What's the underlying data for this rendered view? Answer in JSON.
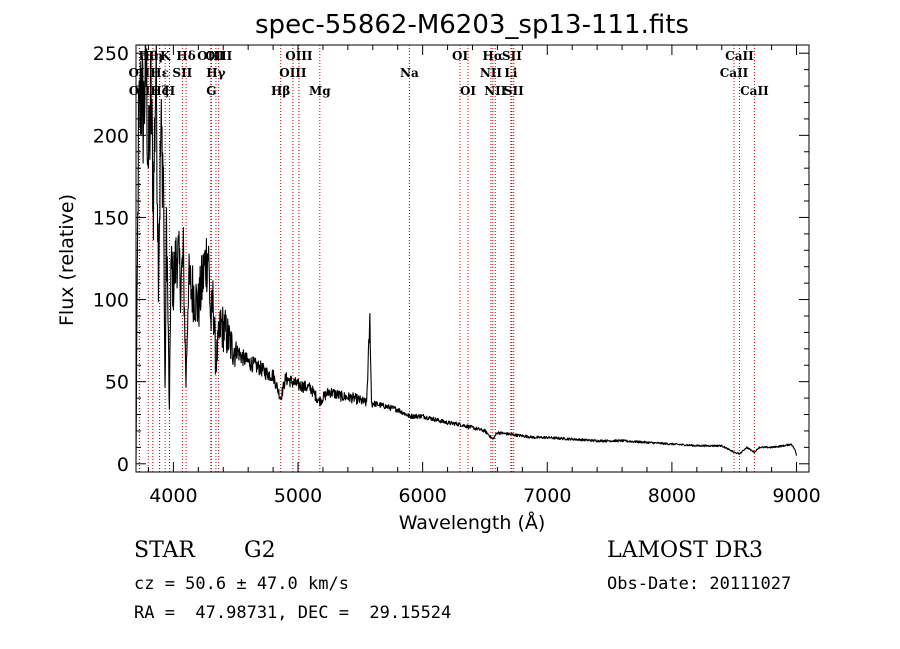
{
  "chart_data": {
    "type": "line",
    "title": "spec-55862-M6203_sp13-111.fits",
    "xlabel": "Wavelength (Å)",
    "ylabel": "Flux (relative)",
    "xlim": [
      3700,
      9100
    ],
    "ylim": [
      -5,
      255
    ],
    "xticks": [
      4000,
      5000,
      6000,
      7000,
      8000,
      9000
    ],
    "yticks": [
      0,
      50,
      100,
      150,
      200,
      250
    ],
    "xtick_labels": [
      "4000",
      "5000",
      "6000",
      "7000",
      "8000",
      "9000"
    ],
    "ytick_labels": [
      "0",
      "50",
      "100",
      "150",
      "200",
      "250"
    ],
    "color": "#000000",
    "line_color": "#cc0000",
    "continuum": [
      [
        3700,
        0
      ],
      [
        3705,
        60
      ],
      [
        3720,
        200
      ],
      [
        3740,
        230
      ],
      [
        3760,
        210
      ],
      [
        3780,
        245
      ],
      [
        3800,
        180
      ],
      [
        3820,
        225
      ],
      [
        3840,
        160
      ],
      [
        3860,
        245
      ],
      [
        3880,
        120
      ],
      [
        3900,
        200
      ],
      [
        3920,
        180
      ],
      [
        3933,
        40
      ],
      [
        3945,
        150
      ],
      [
        3968,
        30
      ],
      [
        3980,
        120
      ],
      [
        4000,
        110
      ],
      [
        4030,
        130
      ],
      [
        4060,
        110
      ],
      [
        4080,
        125
      ],
      [
        4101,
        50
      ],
      [
        4120,
        110
      ],
      [
        4160,
        105
      ],
      [
        4200,
        95
      ],
      [
        4250,
        120
      ],
      [
        4280,
        130
      ],
      [
        4300,
        85
      ],
      [
        4320,
        100
      ],
      [
        4340,
        60
      ],
      [
        4380,
        85
      ],
      [
        4420,
        80
      ],
      [
        4460,
        72
      ],
      [
        4500,
        70
      ],
      [
        4550,
        65
      ],
      [
        4600,
        62
      ],
      [
        4650,
        60
      ],
      [
        4700,
        58
      ],
      [
        4750,
        55
      ],
      [
        4800,
        54
      ],
      [
        4861,
        40
      ],
      [
        4900,
        52
      ],
      [
        4950,
        50
      ],
      [
        5000,
        48
      ],
      [
        5100,
        46
      ],
      [
        5172,
        38
      ],
      [
        5250,
        44
      ],
      [
        5350,
        41
      ],
      [
        5450,
        40
      ],
      [
        5550,
        37
      ],
      [
        5577,
        88
      ],
      [
        5590,
        37
      ],
      [
        5700,
        35
      ],
      [
        5800,
        33
      ],
      [
        5893,
        29
      ],
      [
        6000,
        29
      ],
      [
        6100,
        27
      ],
      [
        6200,
        25
      ],
      [
        6300,
        24
      ],
      [
        6400,
        22
      ],
      [
        6500,
        20
      ],
      [
        6563,
        15
      ],
      [
        6600,
        19
      ],
      [
        6700,
        18
      ],
      [
        6800,
        17
      ],
      [
        6900,
        16
      ],
      [
        7000,
        16
      ],
      [
        7200,
        15
      ],
      [
        7400,
        14
      ],
      [
        7600,
        14
      ],
      [
        7800,
        13
      ],
      [
        8000,
        12
      ],
      [
        8200,
        11
      ],
      [
        8400,
        11
      ],
      [
        8498,
        7
      ],
      [
        8542,
        6
      ],
      [
        8600,
        10
      ],
      [
        8662,
        7
      ],
      [
        8700,
        10
      ],
      [
        8800,
        10
      ],
      [
        8900,
        11
      ],
      [
        8960,
        12
      ],
      [
        8990,
        8
      ],
      [
        9000,
        5
      ]
    ],
    "line_markers": [
      {
        "name": "OII",
        "wavelength": 3727,
        "label_row": 2
      },
      {
        "name": "OII",
        "wavelength": 3729,
        "label_row": 3
      },
      {
        "name": "Hθ",
        "wavelength": 3798,
        "label_row": 1
      },
      {
        "name": "Hη",
        "wavelength": 3835,
        "label_row": 1
      },
      {
        "name": "Hε",
        "wavelength": 3889,
        "label_row": 2
      },
      {
        "name": "Hζ",
        "wavelength": 3889,
        "label_row": 3
      },
      {
        "name": "K",
        "wavelength": 3934,
        "label_row": 1
      },
      {
        "name": "H",
        "wavelength": 3969,
        "label_row": 3
      },
      {
        "name": "SII",
        "wavelength": 4072,
        "label_row": 2
      },
      {
        "name": "Hδ",
        "wavelength": 4102,
        "label_row": 1
      },
      {
        "name": "OIII",
        "wavelength": 4300,
        "label_row": 1
      },
      {
        "name": "G",
        "wavelength": 4305,
        "label_row": 3
      },
      {
        "name": "Hγ",
        "wavelength": 4341,
        "label_row": 2
      },
      {
        "name": "OIII",
        "wavelength": 4363,
        "label_row": 1
      },
      {
        "name": "Hβ",
        "wavelength": 4861,
        "label_row": 3
      },
      {
        "name": "OIII",
        "wavelength": 4959,
        "label_row": 2
      },
      {
        "name": "OIII",
        "wavelength": 5007,
        "label_row": 1
      },
      {
        "name": "Mg",
        "wavelength": 5175,
        "label_row": 3
      },
      {
        "name": "Na",
        "wavelength": 5894,
        "label_row": 2
      },
      {
        "name": "OI",
        "wavelength": 6300,
        "label_row": 1
      },
      {
        "name": "OI",
        "wavelength": 6364,
        "label_row": 3
      },
      {
        "name": "NII",
        "wavelength": 6548,
        "label_row": 2
      },
      {
        "name": "Hα",
        "wavelength": 6563,
        "label_row": 1
      },
      {
        "name": "NII",
        "wavelength": 6583,
        "label_row": 3
      },
      {
        "name": "SII",
        "wavelength": 6716,
        "label_row": 1
      },
      {
        "name": "Li",
        "wavelength": 6708,
        "label_row": 2
      },
      {
        "name": "SII",
        "wavelength": 6731,
        "label_row": 3
      },
      {
        "name": "CaII",
        "wavelength": 8498,
        "label_row": 2
      },
      {
        "name": "CaII",
        "wavelength": 8542,
        "label_row": 1
      },
      {
        "name": "CaII",
        "wavelength": 8662,
        "label_row": 3
      }
    ]
  },
  "info": {
    "class_label": "STAR",
    "subclass_label": "G2",
    "survey": "LAMOST DR3",
    "cz": "cz = 50.6 ± 47.0 km/s",
    "obs_date": "Obs-Date: 20111027",
    "coords": "RA =  47.98731, DEC =  29.15524"
  }
}
